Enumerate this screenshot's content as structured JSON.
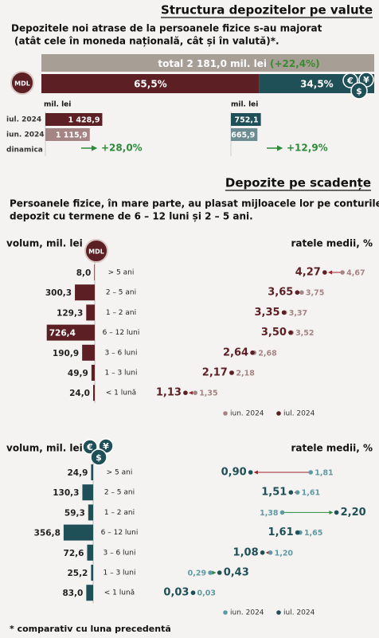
{
  "currency_structure": {
    "title": "Structura depozitelor pe valute",
    "subtitle": [
      "Depozitele noi atrase de la persoanele fizice s-au majorat",
      "(atât cele în moneda națională, cât și în valută)*."
    ],
    "total": "total 2 181,0 mil. lei",
    "total_change": "(+22,4%)",
    "mdl_badge": "MDL",
    "fx_symbols": [
      "€",
      "¥",
      "$"
    ],
    "shares": {
      "values": [
        65.5,
        34.5
      ],
      "value_labels": [
        "65,5%",
        "34,5%"
      ],
      "colors": [
        "#5c1f24",
        "#1f4f57"
      ]
    },
    "unit": "mil. lei",
    "periods": [
      "iul. 2024",
      "iun. 2024"
    ],
    "dynamics_label": "dinamica",
    "mdl": {
      "values": [
        1428.9,
        1115.9
      ],
      "value_labels": [
        "1 428,9",
        "1 115,9"
      ],
      "colors": [
        "#5c1f24",
        "#a58583"
      ],
      "change": "+28,0%"
    },
    "fx": {
      "values": [
        752.1,
        665.9
      ],
      "value_labels": [
        "752,1",
        "665,9"
      ],
      "colors": [
        "#1f4f57",
        "#6c8c91"
      ],
      "change": "+12,9%"
    }
  },
  "maturity": {
    "title": "Depozite pe scadențe",
    "subtitle": [
      "Persoanele fizice, în mare parte, au plasat mijloacele lor pe conturile de",
      "depozit cu termene de 6 – 12 luni și  2 – 5 ani."
    ],
    "volume_label": "volum, mil. lei",
    "rates_label": "ratele medii, %",
    "categories": [
      "> 5 ani",
      "2 – 5 ani",
      "1 – 2 ani",
      "6 – 12 luni",
      "3 – 6 luni",
      "1 – 3 luni",
      "< 1 lună"
    ],
    "legend": [
      "iun. 2024",
      "iul. 2024"
    ],
    "panels": [
      {
        "bar_color": "#5c1f24",
        "prev_color": "#a58583",
        "curr_color": "#5c1f24",
        "volumes": {
          "values": [
            8.0,
            300.3,
            129.3,
            726.4,
            190.9,
            49.9,
            24.0
          ],
          "value_labels": [
            "8,0",
            "300,3",
            "129,3",
            "726,4",
            "190,9",
            "49,9",
            "24,0"
          ]
        },
        "rates_prev": {
          "values": [
            4.67,
            3.75,
            3.37,
            3.52,
            2.68,
            2.18,
            1.35
          ],
          "value_labels": [
            "4,67",
            "3,75",
            "3,37",
            "3,52",
            "2,68",
            "2,18",
            "1,35"
          ]
        },
        "rates_curr": {
          "values": [
            4.27,
            3.65,
            3.35,
            3.5,
            2.64,
            2.17,
            1.13
          ],
          "value_labels": [
            "4,27",
            "3,65",
            "3,35",
            "3,50",
            "2,64",
            "2,17",
            "1,13"
          ]
        }
      },
      {
        "bar_color": "#1f4f57",
        "prev_color": "#5f9aa2",
        "curr_color": "#1f4f57",
        "volumes": {
          "values": [
            24.9,
            130.3,
            59.3,
            356.8,
            72.6,
            25.2,
            83.0
          ],
          "value_labels": [
            "24,9",
            "130,3",
            "59,3",
            "356,8",
            "72,6",
            "25,2",
            "83,0"
          ]
        },
        "rates_prev": {
          "values": [
            1.81,
            1.61,
            1.38,
            1.65,
            1.2,
            0.29,
            0.03
          ],
          "value_labels": [
            "1,81",
            "1,61",
            "1,38",
            "1,65",
            "1,20",
            "0,29",
            "0,03"
          ]
        },
        "rates_curr": {
          "values": [
            0.9,
            1.51,
            2.2,
            1.61,
            1.08,
            0.43,
            0.03
          ],
          "value_labels": [
            "0,90",
            "1,51",
            "2,20",
            "1,61",
            "1,08",
            "0,43",
            "0,03"
          ]
        }
      }
    ]
  },
  "footnote": "* comparativ cu luna precedentă"
}
